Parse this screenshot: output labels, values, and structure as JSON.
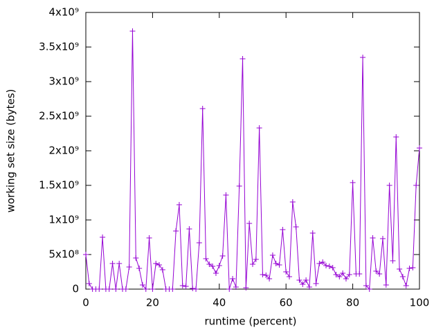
{
  "chart_data": {
    "type": "line",
    "xlabel": "runtime (percent)",
    "ylabel": "working set size (bytes)",
    "x": [
      0,
      1,
      2,
      3,
      4,
      5,
      6,
      7,
      8,
      9,
      10,
      11,
      12,
      13,
      14,
      15,
      16,
      17,
      18,
      19,
      20,
      21,
      22,
      23,
      24,
      25,
      26,
      27,
      28,
      29,
      30,
      31,
      32,
      33,
      34,
      35,
      36,
      37,
      38,
      39,
      40,
      41,
      42,
      43,
      44,
      45,
      46,
      47,
      48,
      49,
      50,
      51,
      52,
      53,
      54,
      55,
      56,
      57,
      58,
      59,
      60,
      61,
      62,
      63,
      64,
      65,
      66,
      67,
      68,
      69,
      70,
      71,
      72,
      73,
      74,
      75,
      76,
      77,
      78,
      79,
      80,
      81,
      82,
      83,
      84,
      85,
      86,
      87,
      88,
      89,
      90,
      91,
      92,
      93,
      94,
      95,
      96,
      97,
      98,
      99,
      100
    ],
    "series": [
      {
        "color": "#9400d3",
        "marker": "+",
        "values": [
          500000000,
          80000000,
          0,
          0,
          0,
          750000000,
          0,
          0,
          370000000,
          0,
          370000000,
          0,
          0,
          320000000,
          3730000000,
          450000000,
          300000000,
          60000000,
          0,
          740000000,
          0,
          370000000,
          350000000,
          280000000,
          0,
          0,
          0,
          840000000,
          1220000000,
          50000000,
          40000000,
          870000000,
          10000000,
          0,
          670000000,
          2610000000,
          440000000,
          360000000,
          330000000,
          230000000,
          340000000,
          480000000,
          1360000000,
          0,
          150000000,
          30000000,
          1490000000,
          3330000000,
          20000000,
          950000000,
          360000000,
          430000000,
          2330000000,
          210000000,
          200000000,
          150000000,
          490000000,
          370000000,
          350000000,
          860000000,
          250000000,
          180000000,
          1260000000,
          900000000,
          130000000,
          70000000,
          130000000,
          30000000,
          810000000,
          80000000,
          370000000,
          390000000,
          340000000,
          330000000,
          310000000,
          210000000,
          180000000,
          230000000,
          150000000,
          210000000,
          1540000000,
          220000000,
          220000000,
          3350000000,
          50000000,
          0,
          740000000,
          260000000,
          220000000,
          730000000,
          60000000,
          1500000000,
          410000000,
          2200000000,
          290000000,
          180000000,
          50000000,
          300000000,
          310000000,
          1500000000,
          2040000000
        ]
      }
    ],
    "xlim": [
      0,
      100
    ],
    "ylim": [
      0,
      4000000000
    ],
    "xticks": [
      0,
      20,
      40,
      60,
      80,
      100
    ],
    "yticks": [
      0,
      {
        "value": 500000000,
        "label": "5x10⁸"
      },
      {
        "value": 1000000000,
        "label": "1x10⁹"
      },
      {
        "value": 1500000000,
        "label": "1.5x10⁹"
      },
      {
        "value": 2000000000,
        "label": "2x10⁹"
      },
      {
        "value": 2500000000,
        "label": "2.5x10⁹"
      },
      {
        "value": 3000000000,
        "label": "3x10⁹"
      },
      {
        "value": 3500000000,
        "label": "3.5x10⁹"
      },
      {
        "value": 4000000000,
        "label": "4x10⁹"
      }
    ],
    "grid": false
  }
}
